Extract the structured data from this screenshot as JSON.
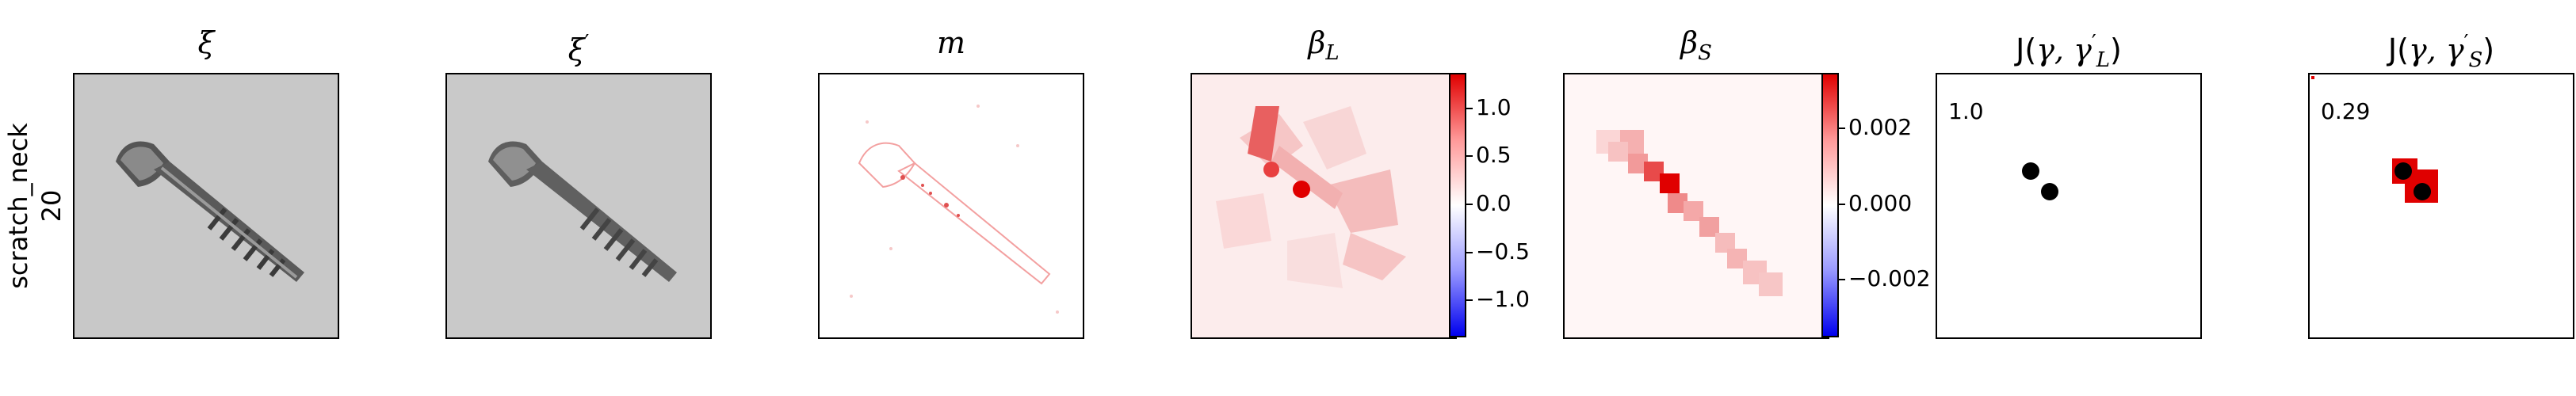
{
  "row_label": {
    "line1": "scratch_neck",
    "line2": "20"
  },
  "panels": [
    {
      "id": "xi",
      "title": "ξ"
    },
    {
      "id": "xi_prime",
      "title": "ξ",
      "title_sup": "′"
    },
    {
      "id": "m",
      "title": "m"
    },
    {
      "id": "beta_L",
      "title": "β",
      "title_sub": "L"
    },
    {
      "id": "beta_S",
      "title": "β",
      "title_sub": "S"
    },
    {
      "id": "J_L",
      "title_prefix": "J(",
      "title_mid": "γ, γ",
      "title_sup": "′",
      "title_sub": "L",
      "title_suffix": ")",
      "value": "1.0"
    },
    {
      "id": "J_S",
      "title_prefix": "J(",
      "title_mid": "γ, γ",
      "title_sup": "′",
      "title_sub": "S",
      "title_suffix": ")",
      "value": "0.29"
    }
  ],
  "colorbars": {
    "beta_L": {
      "ticks": [
        "1.0",
        "0.5",
        "0.0",
        "−0.5",
        "−1.0"
      ],
      "tick_values": [
        1.0,
        0.5,
        0.0,
        -0.5,
        -1.0
      ],
      "range": [
        -1.3,
        1.3
      ]
    },
    "beta_S": {
      "ticks": [
        "0.002",
        "0.000",
        "−0.002"
      ],
      "tick_values": [
        0.002,
        0.0,
        -0.002
      ],
      "range": [
        -0.0035,
        0.0035
      ]
    }
  },
  "colors": {
    "red": "#e00000",
    "blue": "#0000ee",
    "black": "#000000"
  }
}
